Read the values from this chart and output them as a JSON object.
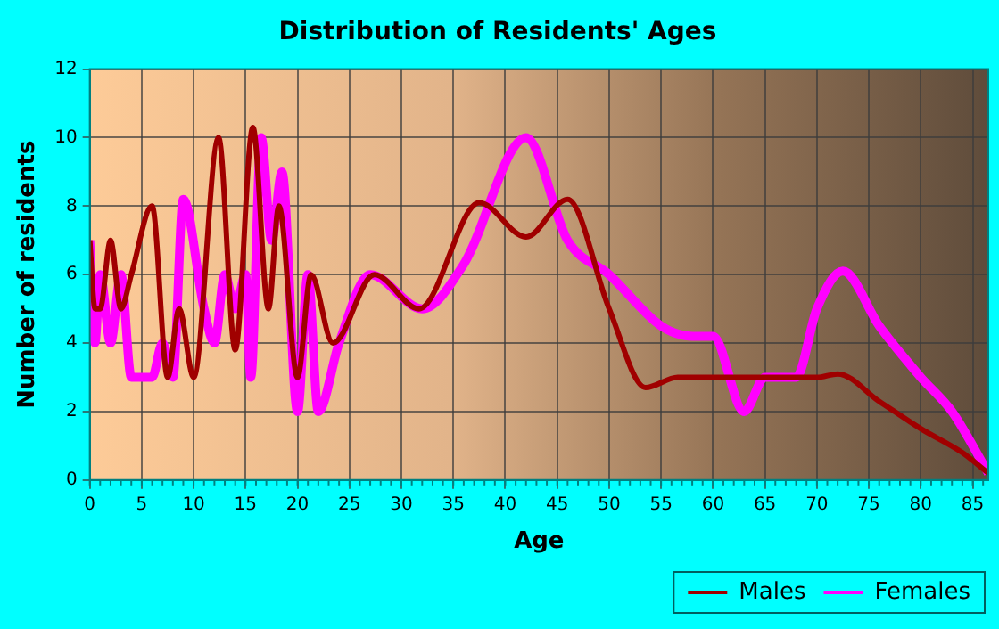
{
  "chart_data": {
    "type": "line",
    "title": "Distribution of Residents' Ages",
    "xlabel": "Age",
    "ylabel": "Number of residents",
    "xlim": [
      0,
      86.5
    ],
    "xticks": [
      0,
      5,
      10,
      15,
      20,
      25,
      30,
      35,
      40,
      45,
      50,
      55,
      60,
      65,
      70,
      75,
      80,
      85
    ],
    "ylim": [
      0,
      12
    ],
    "yticks": [
      0,
      2,
      4,
      6,
      8,
      10,
      12
    ],
    "grid": true,
    "legend": "bottom right",
    "marker": "none",
    "series": [
      {
        "name": "Males",
        "color": "#a00000",
        "x": [
          0,
          0.5,
          1,
          2,
          3,
          4,
          6,
          7.5,
          8.6,
          10,
          12.4,
          14,
          15.7,
          17.2,
          18.2,
          20,
          21.3,
          23.4,
          27.4,
          31.7,
          37.5,
          42,
          46,
          50,
          53.5,
          56.6,
          60,
          65,
          70,
          72,
          76,
          80,
          84,
          86.5
        ],
        "values": [
          7,
          5,
          5,
          7,
          5,
          6,
          8,
          3,
          5,
          3,
          10,
          3.8,
          10.3,
          5,
          8,
          3,
          6,
          4,
          6,
          5,
          8.1,
          7.1,
          8.2,
          5,
          2.7,
          3,
          3,
          3,
          3,
          3.1,
          2.3,
          1.5,
          0.8,
          0.2
        ]
      },
      {
        "name": "Females",
        "color": "#ff00ff",
        "x": [
          0,
          0.5,
          1,
          2,
          3,
          4,
          5,
          6,
          7,
          8,
          9,
          11,
          12,
          13,
          14,
          15,
          15.5,
          16.5,
          17.5,
          18.5,
          20,
          21,
          22,
          24,
          27,
          32,
          36,
          42,
          46,
          50,
          55,
          58,
          60,
          63,
          65,
          68,
          70,
          72.5,
          76,
          80,
          83,
          86.5
        ],
        "values": [
          7,
          4,
          6,
          4,
          6,
          3,
          3,
          3,
          4,
          3,
          8.2,
          5,
          4,
          6,
          5,
          6,
          3,
          10,
          7,
          9,
          2,
          6,
          2,
          4,
          6,
          5,
          6.3,
          10,
          7,
          6,
          4.5,
          4.2,
          4.2,
          2,
          3,
          3,
          5,
          6.1,
          4.5,
          3,
          2,
          0.2
        ]
      }
    ]
  }
}
